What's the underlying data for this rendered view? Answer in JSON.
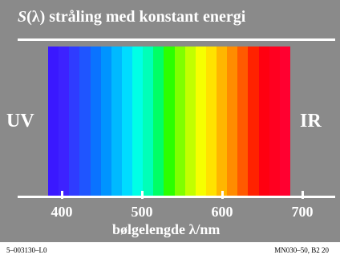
{
  "title": {
    "symbol": "S",
    "rest": "(λ) stråling med konstant energi"
  },
  "left_label": "UV",
  "right_label": "IR",
  "axis": {
    "ticks": [
      "400",
      "500",
      "600",
      "700"
    ],
    "label": "bølgelengde λ/nm"
  },
  "spectrum_colors": [
    "#3a18ff",
    "#3d22ff",
    "#2f3cff",
    "#1f55ff",
    "#0a73ff",
    "#0094ff",
    "#00b9ff",
    "#00dcff",
    "#00ffe6",
    "#00ffb8",
    "#00ff66",
    "#2cff00",
    "#80ff00",
    "#c2ff00",
    "#f6ff00",
    "#ffe200",
    "#ffb600",
    "#ff8c00",
    "#ff5a00",
    "#ff2200",
    "#ff0010",
    "#ff0020",
    "#ff0030"
  ],
  "footer": {
    "left": "5–003130–L0",
    "right": "MN030–50, B2 20"
  }
}
